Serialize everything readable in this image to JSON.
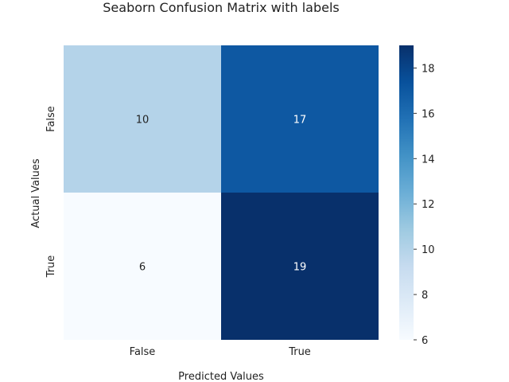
{
  "chart_data": {
    "type": "heatmap",
    "title": "Seaborn Confusion Matrix with labels",
    "xlabel": "Predicted Values",
    "ylabel": "Actual Values",
    "x_categories": [
      "False",
      "True"
    ],
    "y_categories": [
      "False",
      "True"
    ],
    "values": [
      [
        10,
        17
      ],
      [
        6,
        19
      ]
    ],
    "colormap": "Blues",
    "color_low": "#f7fbff",
    "color_high": "#08306b",
    "colorbar": {
      "range": [
        6,
        19
      ],
      "ticks": [
        "6",
        "8",
        "10",
        "12",
        "14",
        "16",
        "18"
      ]
    },
    "annotations": true,
    "grid": false
  }
}
